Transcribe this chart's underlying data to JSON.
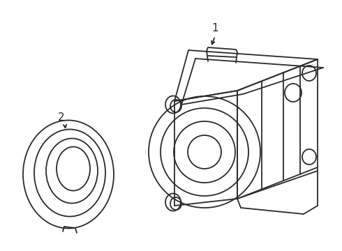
{
  "background_color": "#ffffff",
  "line_color": "#2a2a2a",
  "line_width": 1.3,
  "label1_text": "1",
  "label2_text": "2"
}
